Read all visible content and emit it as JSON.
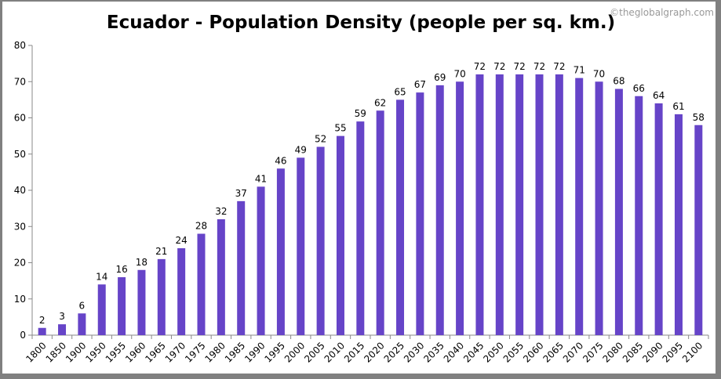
{
  "chart_data": {
    "type": "bar",
    "title": "Ecuador - Population Density (people per sq. km.)",
    "watermark": "©theglobalgraph.com",
    "xlabel": "",
    "ylabel": "",
    "ylim": [
      0,
      80
    ],
    "yticks": [
      0,
      10,
      20,
      30,
      40,
      50,
      60,
      70,
      80
    ],
    "grid": false,
    "bar_color": "#6644c8",
    "data_labels": true,
    "categories": [
      "1800",
      "1850",
      "1900",
      "1950",
      "1955",
      "1960",
      "1965",
      "1970",
      "1975",
      "1980",
      "1985",
      "1990",
      "1995",
      "2000",
      "2005",
      "2010",
      "2015",
      "2020",
      "2025",
      "2030",
      "2035",
      "2040",
      "2045",
      "2050",
      "2055",
      "2060",
      "2065",
      "2070",
      "2075",
      "2080",
      "2085",
      "2090",
      "2095",
      "2100"
    ],
    "values": [
      2,
      3,
      6,
      14,
      16,
      18,
      21,
      24,
      28,
      32,
      37,
      41,
      46,
      49,
      52,
      55,
      59,
      62,
      65,
      67,
      69,
      70,
      72,
      72,
      72,
      72,
      72,
      71,
      70,
      68,
      66,
      64,
      61,
      58
    ]
  }
}
